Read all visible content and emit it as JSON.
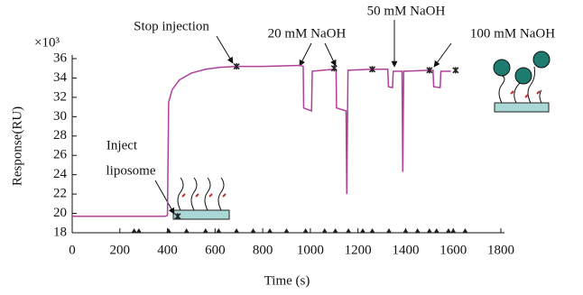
{
  "chart_data": {
    "type": "line",
    "x_label": "Time (s)",
    "y_label": "Response(RU)",
    "y_multiplier": "×10³",
    "xlim": [
      0,
      1800
    ],
    "xticks": [
      0,
      200,
      400,
      600,
      800,
      1000,
      1200,
      1400,
      1600,
      1800
    ],
    "ylim": [
      18,
      36
    ],
    "yticks": [
      18,
      20,
      22,
      24,
      26,
      28,
      30,
      32,
      34,
      36
    ],
    "color": "#b0409a",
    "x": [
      0,
      390,
      400,
      405,
      420,
      450,
      500,
      560,
      620,
      690,
      800,
      960,
      970,
      972,
      1005,
      1008,
      1100,
      1108,
      1110,
      1150,
      1153,
      1158,
      1260,
      1325,
      1328,
      1345,
      1348,
      1385,
      1388,
      1392,
      1500,
      1515,
      1518,
      1545,
      1548,
      1590
    ],
    "values": [
      19.7,
      19.7,
      19.8,
      31.5,
      32.8,
      33.8,
      34.5,
      34.9,
      35.1,
      35.2,
      35.2,
      35.3,
      35.2,
      30.9,
      30.6,
      34.7,
      34.9,
      34.9,
      30.9,
      30.6,
      22.0,
      34.8,
      34.9,
      34.9,
      33.1,
      33.0,
      34.7,
      34.7,
      24.3,
      34.7,
      34.8,
      34.8,
      33.1,
      33.0,
      34.7,
      34.7
    ],
    "markers": {
      "x": [
        443,
        690,
        1100,
        1260,
        1500,
        1610
      ],
      "values": [
        19.7,
        35.2,
        35.0,
        34.9,
        34.8,
        34.8
      ]
    },
    "events": {
      "x": [
        260,
        280,
        405,
        480,
        560,
        615,
        690,
        760,
        830,
        900,
        980,
        1060,
        1105,
        1160,
        1220,
        1260,
        1330,
        1400,
        1450,
        1500,
        1530,
        1580,
        1600,
        1650
      ],
      "values": [
        18,
        18,
        18,
        18,
        18,
        18,
        18,
        18,
        18,
        18,
        18,
        18,
        18,
        18,
        18,
        18,
        18,
        18,
        18,
        18,
        18,
        18,
        18,
        18
      ]
    },
    "annotations": {
      "inject": [
        "Inject",
        "liposome"
      ],
      "stop": "Stop injection",
      "naoh20": "20 mM NaOH",
      "naoh50": "50 mM NaOH",
      "naoh100": "100 mM NaOH"
    }
  }
}
